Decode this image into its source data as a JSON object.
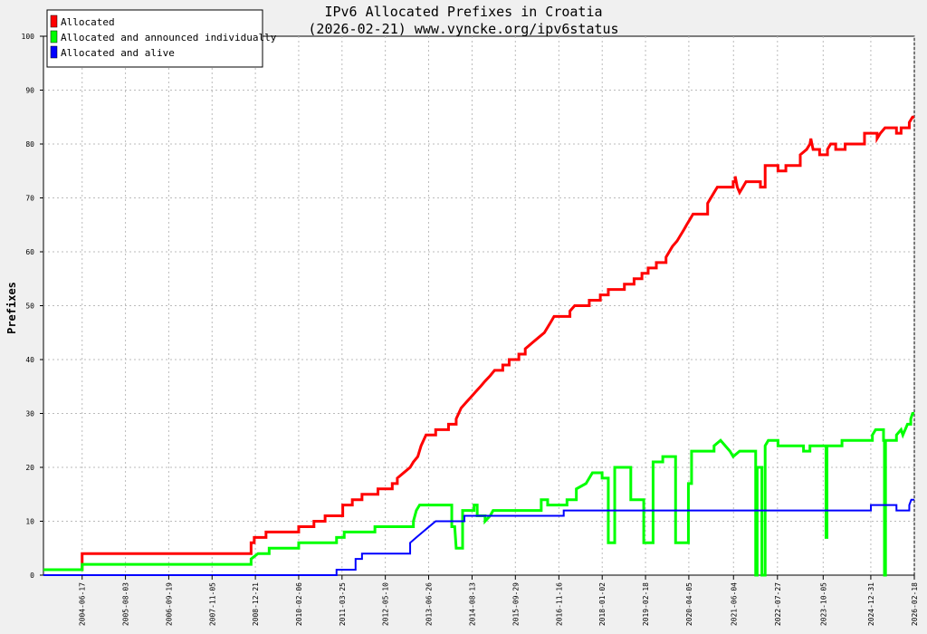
{
  "chart_data": {
    "type": "line",
    "title": "IPv6 Allocated Prefixes in Croatia",
    "subtitle": "(2026-02-21) www.vyncke.org/ipv6status",
    "xlabel": "",
    "ylabel": "Prefixes",
    "xlim": [
      "2003-06-15",
      "2026-02-18"
    ],
    "ylim": [
      0,
      100
    ],
    "y_ticks": [
      "0",
      "10",
      "20",
      "30",
      "40",
      "50",
      "60",
      "70",
      "80",
      "90",
      "100"
    ],
    "x_ticks": [
      "2004-06-17",
      "2005-08-03",
      "2006-09-19",
      "2007-11-05",
      "2008-12-21",
      "2010-02-06",
      "2011-03-25",
      "2012-05-10",
      "2013-06-26",
      "2014-08-13",
      "2015-09-29",
      "2016-11-16",
      "2018-01-02",
      "2019-02-18",
      "2020-04-05",
      "2021-06-04",
      "2022-07-27",
      "2023-10-05",
      "2024-12-31",
      "2026-02-18"
    ],
    "grid": true,
    "legend_position": "top-left",
    "series": [
      {
        "name": "Allocated",
        "color": "#ff0000",
        "points": [
          [
            "2003-06-15",
            1
          ],
          [
            "2004-06-17",
            1
          ],
          [
            "2004-06-17",
            4
          ],
          [
            "2008-11-10",
            4
          ],
          [
            "2008-11-10",
            6
          ],
          [
            "2008-12-10",
            6
          ],
          [
            "2008-12-10",
            7
          ],
          [
            "2009-04-01",
            7
          ],
          [
            "2009-04-01",
            8
          ],
          [
            "2010-02-06",
            8
          ],
          [
            "2010-02-06",
            9
          ],
          [
            "2010-07-01",
            9
          ],
          [
            "2010-07-01",
            10
          ],
          [
            "2010-10-15",
            10
          ],
          [
            "2010-10-15",
            11
          ],
          [
            "2011-04-01",
            11
          ],
          [
            "2011-04-01",
            13
          ],
          [
            "2011-07-01",
            13
          ],
          [
            "2011-07-01",
            14
          ],
          [
            "2011-10-01",
            14
          ],
          [
            "2011-10-01",
            15
          ],
          [
            "2012-03-01",
            15
          ],
          [
            "2012-03-01",
            16
          ],
          [
            "2012-07-15",
            16
          ],
          [
            "2012-07-15",
            17
          ],
          [
            "2012-09-01",
            17
          ],
          [
            "2012-09-01",
            18
          ],
          [
            "2012-11-01",
            19
          ],
          [
            "2013-01-01",
            20
          ],
          [
            "2013-02-01",
            21
          ],
          [
            "2013-03-15",
            22
          ],
          [
            "2013-04-15",
            24
          ],
          [
            "2013-06-01",
            26
          ],
          [
            "2013-09-01",
            26
          ],
          [
            "2013-09-01",
            27
          ],
          [
            "2014-01-01",
            27
          ],
          [
            "2014-01-01",
            28
          ],
          [
            "2014-03-15",
            28
          ],
          [
            "2014-03-15",
            29
          ],
          [
            "2014-05-01",
            31
          ],
          [
            "2014-06-15",
            32
          ],
          [
            "2014-08-01",
            33
          ],
          [
            "2014-09-15",
            34
          ],
          [
            "2014-11-01",
            35
          ],
          [
            "2014-12-15",
            36
          ],
          [
            "2015-02-01",
            37
          ],
          [
            "2015-03-15",
            38
          ],
          [
            "2015-06-01",
            38
          ],
          [
            "2015-06-01",
            39
          ],
          [
            "2015-08-01",
            39
          ],
          [
            "2015-08-01",
            40
          ],
          [
            "2015-11-01",
            40
          ],
          [
            "2015-11-01",
            41
          ],
          [
            "2016-01-01",
            41
          ],
          [
            "2016-01-01",
            42
          ],
          [
            "2016-03-01",
            43
          ],
          [
            "2016-05-01",
            44
          ],
          [
            "2016-07-01",
            45
          ],
          [
            "2016-09-01",
            47
          ],
          [
            "2016-10-01",
            48
          ],
          [
            "2017-03-01",
            48
          ],
          [
            "2017-03-01",
            49
          ],
          [
            "2017-04-15",
            50
          ],
          [
            "2017-09-01",
            50
          ],
          [
            "2017-09-01",
            51
          ],
          [
            "2017-12-15",
            51
          ],
          [
            "2017-12-15",
            52
          ],
          [
            "2018-03-01",
            52
          ],
          [
            "2018-03-01",
            53
          ],
          [
            "2018-08-01",
            53
          ],
          [
            "2018-08-01",
            54
          ],
          [
            "2018-11-01",
            54
          ],
          [
            "2018-11-01",
            55
          ],
          [
            "2019-01-15",
            55
          ],
          [
            "2019-01-15",
            56
          ],
          [
            "2019-03-15",
            56
          ],
          [
            "2019-03-15",
            57
          ],
          [
            "2019-06-01",
            57
          ],
          [
            "2019-06-01",
            58
          ],
          [
            "2019-09-01",
            58
          ],
          [
            "2019-09-01",
            59
          ],
          [
            "2019-11-01",
            61
          ],
          [
            "2019-12-15",
            62
          ],
          [
            "2020-01-15",
            63
          ],
          [
            "2020-02-15",
            64
          ],
          [
            "2020-03-15",
            65
          ],
          [
            "2020-04-15",
            66
          ],
          [
            "2020-05-15",
            67
          ],
          [
            "2020-10-01",
            67
          ],
          [
            "2020-10-01",
            69
          ],
          [
            "2020-12-01",
            71
          ],
          [
            "2021-01-01",
            72
          ],
          [
            "2021-06-01",
            72
          ],
          [
            "2021-06-01",
            73
          ],
          [
            "2021-06-20",
            73
          ],
          [
            "2021-06-20",
            74
          ],
          [
            "2021-07-10",
            72
          ],
          [
            "2021-08-01",
            71
          ],
          [
            "2021-09-01",
            72
          ],
          [
            "2021-10-01",
            73
          ],
          [
            "2022-02-15",
            73
          ],
          [
            "2022-02-15",
            72
          ],
          [
            "2022-04-01",
            72
          ],
          [
            "2022-04-01",
            76
          ],
          [
            "2022-08-01",
            76
          ],
          [
            "2022-08-01",
            75
          ],
          [
            "2022-10-15",
            75
          ],
          [
            "2022-10-15",
            76
          ],
          [
            "2023-03-01",
            76
          ],
          [
            "2023-03-01",
            78
          ],
          [
            "2023-05-01",
            79
          ],
          [
            "2023-06-01",
            80
          ],
          [
            "2023-06-10",
            81
          ],
          [
            "2023-06-20",
            80
          ],
          [
            "2023-07-01",
            79
          ],
          [
            "2023-09-01",
            79
          ],
          [
            "2023-09-01",
            78
          ],
          [
            "2023-11-15",
            78
          ],
          [
            "2023-11-15",
            79
          ],
          [
            "2023-12-15",
            80
          ],
          [
            "2024-02-01",
            80
          ],
          [
            "2024-02-01",
            79
          ],
          [
            "2024-05-01",
            79
          ],
          [
            "2024-05-01",
            80
          ],
          [
            "2024-11-01",
            80
          ],
          [
            "2024-11-01",
            82
          ],
          [
            "2025-03-01",
            82
          ],
          [
            "2025-03-01",
            81
          ],
          [
            "2025-04-01",
            82
          ],
          [
            "2025-05-15",
            83
          ],
          [
            "2025-09-01",
            83
          ],
          [
            "2025-09-01",
            82
          ],
          [
            "2025-10-15",
            82
          ],
          [
            "2025-10-15",
            83
          ],
          [
            "2026-01-01",
            83
          ],
          [
            "2026-01-01",
            84
          ],
          [
            "2026-02-01",
            85
          ],
          [
            "2026-02-18",
            85
          ]
        ]
      },
      {
        "name": "Allocated and announced individually",
        "color": "#00ff00",
        "points": [
          [
            "2003-06-15",
            1
          ],
          [
            "2004-06-17",
            1
          ],
          [
            "2004-06-17",
            2
          ],
          [
            "2008-11-10",
            2
          ],
          [
            "2008-11-10",
            3
          ],
          [
            "2009-01-15",
            4
          ],
          [
            "2009-05-01",
            4
          ],
          [
            "2009-05-01",
            5
          ],
          [
            "2010-02-06",
            5
          ],
          [
            "2010-02-06",
            6
          ],
          [
            "2011-02-01",
            6
          ],
          [
            "2011-02-01",
            7
          ],
          [
            "2011-04-15",
            7
          ],
          [
            "2011-04-15",
            8
          ],
          [
            "2012-02-01",
            8
          ],
          [
            "2012-02-01",
            9
          ],
          [
            "2013-02-01",
            9
          ],
          [
            "2013-02-01",
            10
          ],
          [
            "2013-03-01",
            12
          ],
          [
            "2013-04-01",
            13
          ],
          [
            "2014-02-01",
            13
          ],
          [
            "2014-02-01",
            9
          ],
          [
            "2014-03-01",
            9
          ],
          [
            "2014-03-15",
            5
          ],
          [
            "2014-05-15",
            5
          ],
          [
            "2014-05-15",
            12
          ],
          [
            "2014-09-01",
            12
          ],
          [
            "2014-09-01",
            13
          ],
          [
            "2014-10-01",
            13
          ],
          [
            "2014-10-01",
            11
          ],
          [
            "2014-12-15",
            11
          ],
          [
            "2014-12-15",
            10
          ],
          [
            "2015-02-01",
            11
          ],
          [
            "2015-03-01",
            12
          ],
          [
            "2016-06-01",
            12
          ],
          [
            "2016-06-01",
            14
          ],
          [
            "2016-08-01",
            14
          ],
          [
            "2016-08-01",
            13
          ],
          [
            "2017-02-01",
            13
          ],
          [
            "2017-02-01",
            14
          ],
          [
            "2017-05-01",
            14
          ],
          [
            "2017-05-01",
            16
          ],
          [
            "2017-08-01",
            17
          ],
          [
            "2017-10-01",
            19
          ],
          [
            "2018-01-01",
            19
          ],
          [
            "2018-01-01",
            18
          ],
          [
            "2018-03-01",
            18
          ],
          [
            "2018-03-01",
            6
          ],
          [
            "2018-05-01",
            6
          ],
          [
            "2018-05-01",
            20
          ],
          [
            "2018-10-01",
            20
          ],
          [
            "2018-10-01",
            14
          ],
          [
            "2019-02-01",
            14
          ],
          [
            "2019-02-01",
            6
          ],
          [
            "2019-05-01",
            6
          ],
          [
            "2019-05-01",
            21
          ],
          [
            "2019-08-01",
            21
          ],
          [
            "2019-08-01",
            22
          ],
          [
            "2019-12-01",
            22
          ],
          [
            "2019-12-01",
            6
          ],
          [
            "2020-04-01",
            6
          ],
          [
            "2020-04-01",
            17
          ],
          [
            "2020-05-01",
            17
          ],
          [
            "2020-05-01",
            23
          ],
          [
            "2020-12-01",
            23
          ],
          [
            "2020-12-01",
            24
          ],
          [
            "2021-02-01",
            25
          ],
          [
            "2021-05-01",
            23
          ],
          [
            "2021-06-01",
            22
          ],
          [
            "2021-08-01",
            23
          ],
          [
            "2022-01-01",
            23
          ],
          [
            "2022-01-01",
            0
          ],
          [
            "2022-01-15",
            0
          ],
          [
            "2022-01-15",
            20
          ],
          [
            "2022-03-01",
            20
          ],
          [
            "2022-03-01",
            0
          ],
          [
            "2022-04-01",
            0
          ],
          [
            "2022-04-01",
            24
          ],
          [
            "2022-05-01",
            25
          ],
          [
            "2022-08-01",
            25
          ],
          [
            "2022-08-01",
            24
          ],
          [
            "2023-04-01",
            24
          ],
          [
            "2023-04-01",
            23
          ],
          [
            "2023-06-01",
            23
          ],
          [
            "2023-06-01",
            24
          ],
          [
            "2023-11-01",
            24
          ],
          [
            "2023-11-01",
            7
          ],
          [
            "2023-11-10",
            7
          ],
          [
            "2023-11-10",
            24
          ],
          [
            "2024-04-01",
            24
          ],
          [
            "2024-04-01",
            25
          ],
          [
            "2025-01-15",
            25
          ],
          [
            "2025-01-15",
            26
          ],
          [
            "2025-02-15",
            27
          ],
          [
            "2025-05-01",
            27
          ],
          [
            "2025-05-01",
            25
          ],
          [
            "2025-05-10",
            25
          ],
          [
            "2025-05-10",
            0
          ],
          [
            "2025-05-20",
            0
          ],
          [
            "2025-05-20",
            25
          ],
          [
            "2025-09-01",
            25
          ],
          [
            "2025-09-01",
            26
          ],
          [
            "2025-10-15",
            27
          ],
          [
            "2025-11-01",
            26
          ],
          [
            "2025-12-15",
            28
          ],
          [
            "2026-01-15",
            28
          ],
          [
            "2026-01-15",
            29
          ],
          [
            "2026-02-01",
            30
          ],
          [
            "2026-02-18",
            30
          ]
        ]
      },
      {
        "name": "Allocated and alive",
        "color": "#0000ff",
        "points": [
          [
            "2003-06-15",
            0
          ],
          [
            "2011-02-01",
            0
          ],
          [
            "2011-02-01",
            1
          ],
          [
            "2011-08-01",
            1
          ],
          [
            "2011-08-01",
            3
          ],
          [
            "2011-10-01",
            3
          ],
          [
            "2011-10-01",
            4
          ],
          [
            "2013-01-01",
            4
          ],
          [
            "2013-01-01",
            6
          ],
          [
            "2013-03-01",
            7
          ],
          [
            "2013-05-01",
            8
          ],
          [
            "2013-07-01",
            9
          ],
          [
            "2013-09-01",
            10
          ],
          [
            "2014-06-01",
            10
          ],
          [
            "2014-06-01",
            11
          ],
          [
            "2017-01-01",
            11
          ],
          [
            "2017-01-01",
            12
          ],
          [
            "2025-01-01",
            12
          ],
          [
            "2025-01-01",
            13
          ],
          [
            "2025-09-01",
            13
          ],
          [
            "2025-09-01",
            12
          ],
          [
            "2026-01-01",
            12
          ],
          [
            "2026-01-01",
            13
          ],
          [
            "2026-01-20",
            14
          ],
          [
            "2026-02-18",
            14
          ]
        ]
      }
    ]
  }
}
